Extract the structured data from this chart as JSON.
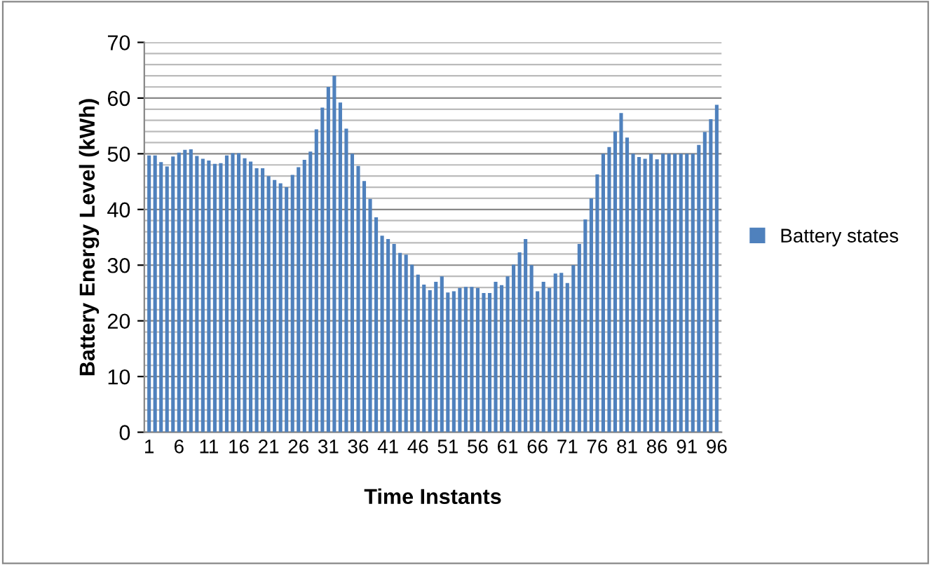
{
  "chart_data": {
    "type": "bar",
    "xlabel": "Time Instants",
    "ylabel": "Battery Energy Level (kWh)",
    "categories": [
      "1",
      null,
      null,
      null,
      null,
      "6",
      null,
      null,
      null,
      null,
      "11",
      null,
      null,
      null,
      null,
      "16",
      null,
      null,
      null,
      null,
      "21",
      null,
      null,
      null,
      null,
      "26",
      null,
      null,
      null,
      null,
      "31",
      null,
      null,
      null,
      null,
      "36",
      null,
      null,
      null,
      null,
      "41",
      null,
      null,
      null,
      null,
      "46",
      null,
      null,
      null,
      null,
      "51",
      null,
      null,
      null,
      null,
      "56",
      null,
      null,
      null,
      null,
      "61",
      null,
      null,
      null,
      null,
      "66",
      null,
      null,
      null,
      null,
      "71",
      null,
      null,
      null,
      null,
      "76",
      null,
      null,
      null,
      null,
      "81",
      null,
      null,
      null,
      null,
      "86",
      null,
      null,
      null,
      null,
      "91",
      null,
      null,
      null,
      null,
      "96"
    ],
    "series": [
      {
        "name": "Battery states",
        "color": "#4f81bd",
        "values": [
          49.7,
          49.7,
          48.5,
          47.7,
          49.5,
          50.2,
          50.7,
          50.8,
          49.6,
          49.1,
          48.8,
          48.2,
          48.3,
          49.7,
          50.1,
          50.1,
          49.2,
          48.6,
          47.4,
          47.4,
          46,
          45.3,
          44.7,
          44,
          46.2,
          47.6,
          48.9,
          50.4,
          54.4,
          58.3,
          62,
          64,
          59.2,
          54.5,
          50,
          47.8,
          45.1,
          41.9,
          38.6,
          35.3,
          34.7,
          33.8,
          32.2,
          31.9,
          30.1,
          28.3,
          26.5,
          25.5,
          27,
          28,
          25.1,
          25.3,
          25.9,
          26.1,
          26.1,
          25.9,
          25,
          25,
          27,
          26.4,
          28,
          30.1,
          32.3,
          34.7,
          30,
          25.3,
          27,
          25.9,
          28.5,
          28.6,
          26.8,
          30,
          33.8,
          38.2,
          42,
          46.3,
          50,
          51.2,
          54,
          57.3,
          52.9,
          50,
          49.4,
          49.1,
          50,
          49,
          50,
          50,
          50,
          50,
          50,
          50,
          51.6,
          53.9,
          56.2,
          58.8
        ]
      }
    ],
    "ylim": [
      0,
      70
    ],
    "yticks": [
      0,
      10,
      20,
      30,
      40,
      50,
      60,
      70
    ],
    "grid": "y",
    "legend": "right"
  }
}
